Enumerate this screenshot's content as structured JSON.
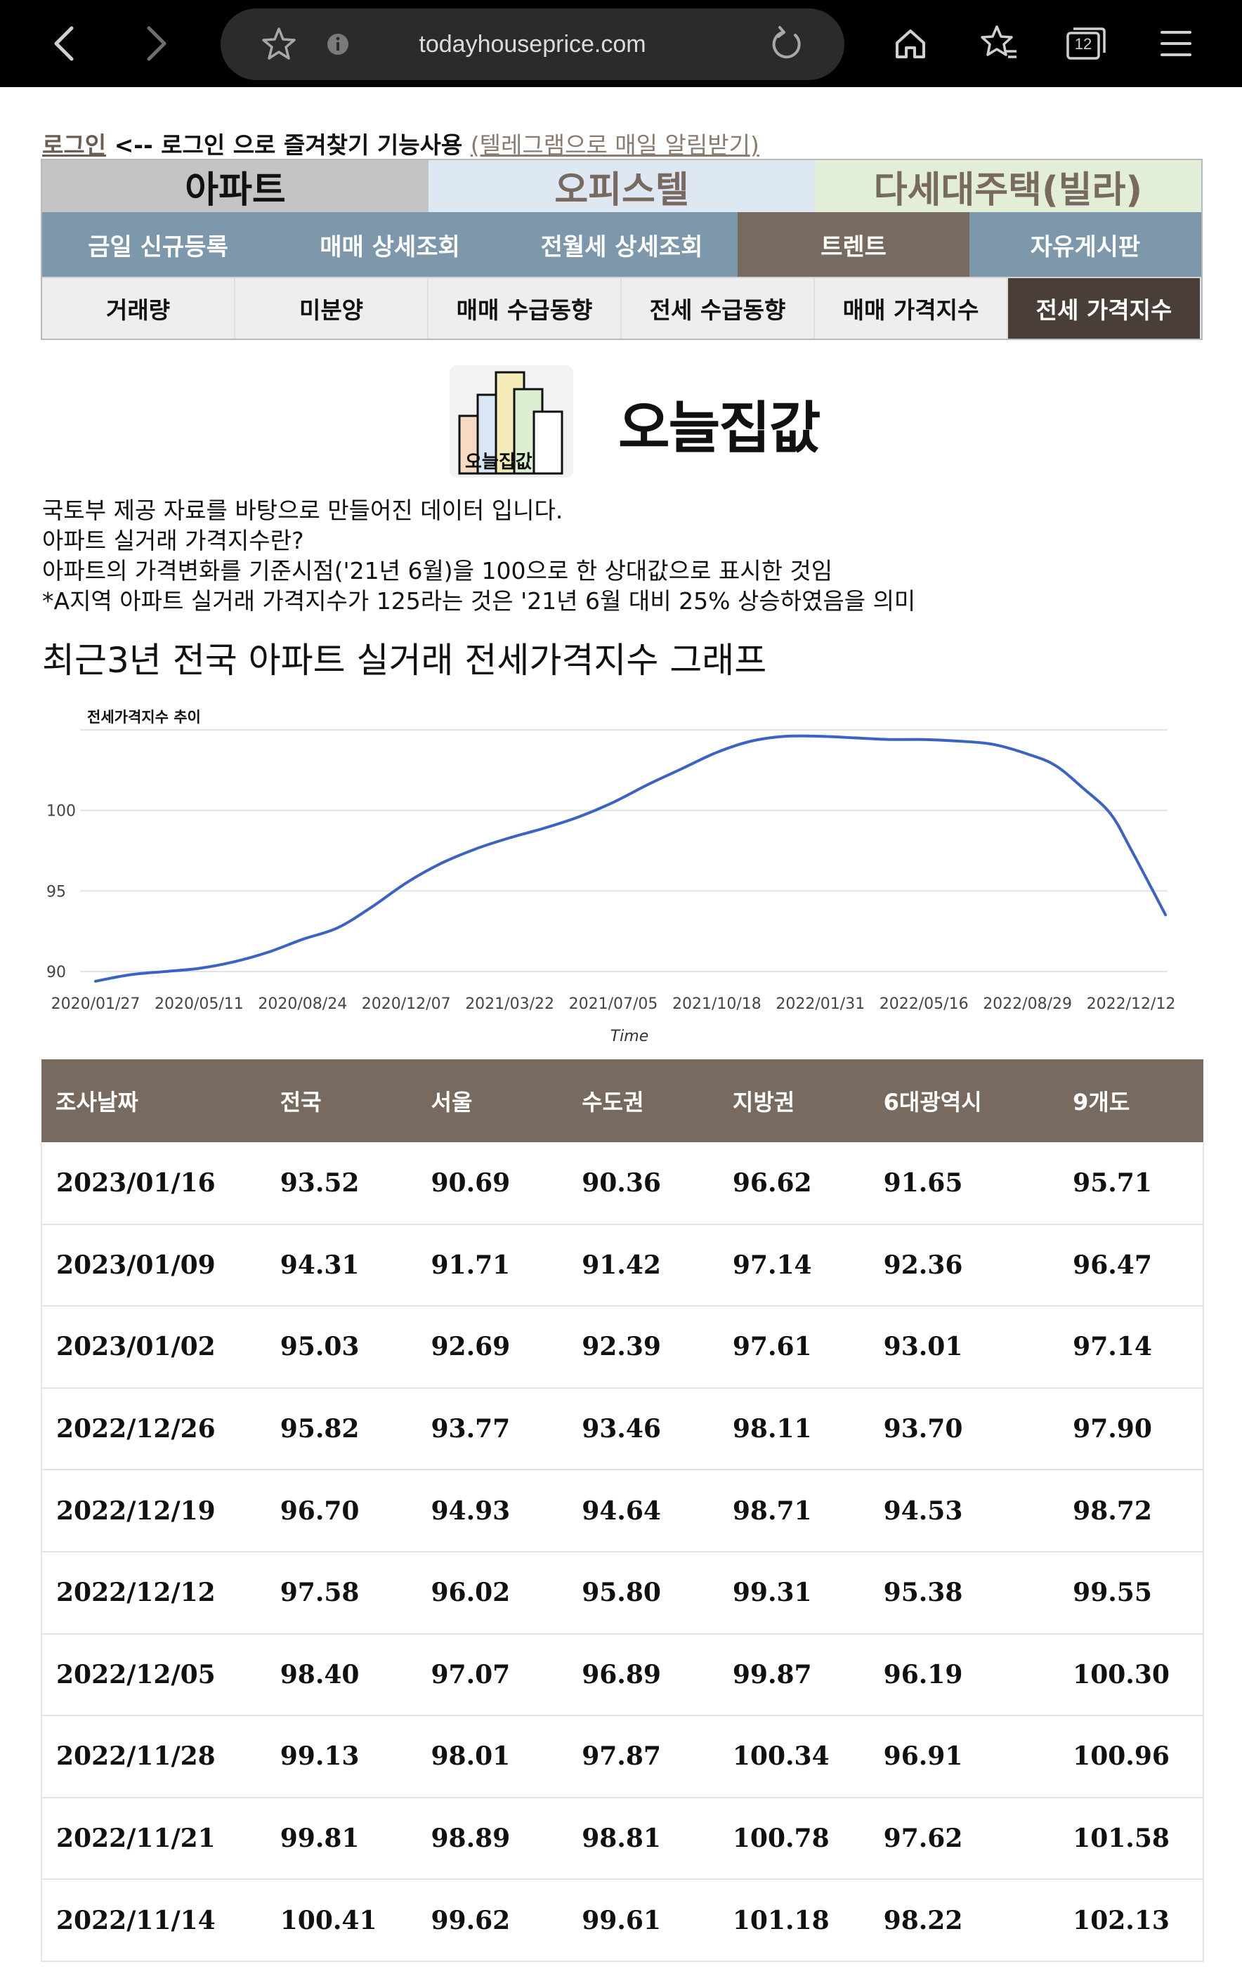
{
  "browser": {
    "url": "todayhouseprice.com",
    "tab_count": "12"
  },
  "login": {
    "login_link": "로그인",
    "text": "<-- 로그인 으로 즐겨찾기 기능사용",
    "telegram_link": "(텔레그램으로 매일 알림받기)"
  },
  "menu": {
    "categories": [
      {
        "label": "아파트",
        "bg": "#c4c4c4",
        "color": "#111111"
      },
      {
        "label": "오피스텔",
        "bg": "#dde8f3",
        "color": "#786a5e"
      },
      {
        "label": "다세대주택(빌라)",
        "bg": "#e3eed9",
        "color": "#786a5e"
      }
    ],
    "sections": [
      "금일 신규등록",
      "매매 상세조회",
      "전월세 상세조회",
      "트렌트",
      "자유게시판"
    ],
    "subsections": [
      "거래량",
      "미분양",
      "매매 수급동향",
      "전세 수급동향",
      "매매 가격지수",
      "전세 가격지수"
    ]
  },
  "logo": {
    "text": "오늘집값",
    "icon_text": "오늘집값"
  },
  "description": [
    "국토부 제공 자료를 바탕으로 만들어진 데이터 입니다.",
    "아파트 실거래 가격지수란?",
    "아파트의 가격변화를 기준시점('21년 6월)을 100으로 한 상대값으로 표시한 것임",
    "*A지역 아파트 실거래 가격지수가 125라는 것은 '21년 6월 대비 25% 상승하였음을 의미"
  ],
  "chart_heading": "최근3년 전국 아파트 실거래 전세가격지수 그래프",
  "chart_data": {
    "type": "line",
    "title": "전세가격지수 추이",
    "xlabel": "Time",
    "ylabel": "",
    "x_ticks": [
      "2020/01/27",
      "2020/05/11",
      "2020/08/24",
      "2020/12/07",
      "2021/03/22",
      "2021/07/05",
      "2021/10/18",
      "2022/01/31",
      "2022/05/16",
      "2022/08/29",
      "2022/12/12"
    ],
    "y_ticks": [
      90,
      95,
      100
    ],
    "ylim": [
      89,
      106
    ],
    "line_color": "#3b63c4",
    "grid": true,
    "series": [
      {
        "x": [
          "2020/01/27",
          "2020/03/02",
          "2020/04/06",
          "2020/05/11",
          "2020/06/15",
          "2020/07/20",
          "2020/08/24",
          "2020/09/28",
          "2020/11/02",
          "2020/12/07",
          "2021/01/11",
          "2021/02/15",
          "2021/03/22",
          "2021/04/26",
          "2021/05/31",
          "2021/07/05",
          "2021/08/09",
          "2021/09/13",
          "2021/10/18",
          "2021/11/22",
          "2021/12/27",
          "2022/01/31",
          "2022/03/07",
          "2022/04/11",
          "2022/05/16",
          "2022/06/20",
          "2022/07/25",
          "2022/08/29",
          "2022/09/26",
          "2022/10/24",
          "2022/11/21",
          "2022/12/12",
          "2023/01/16"
        ],
        "values": [
          89.4,
          89.8,
          90.0,
          90.2,
          90.6,
          91.2,
          92.0,
          92.7,
          94.0,
          95.5,
          96.7,
          97.6,
          98.3,
          98.9,
          99.6,
          100.5,
          101.6,
          102.6,
          103.6,
          104.3,
          104.6,
          104.6,
          104.5,
          104.4,
          104.4,
          104.3,
          104.1,
          103.5,
          102.8,
          101.4,
          99.81,
          97.58,
          93.52
        ]
      }
    ]
  },
  "table": {
    "headers": [
      "조사날짜",
      "전국",
      "서울",
      "수도권",
      "지방권",
      "6대광역시",
      "9개도"
    ],
    "rows": [
      [
        "2023/01/16",
        "93.52",
        "90.69",
        "90.36",
        "96.62",
        "91.65",
        "95.71"
      ],
      [
        "2023/01/09",
        "94.31",
        "91.71",
        "91.42",
        "97.14",
        "92.36",
        "96.47"
      ],
      [
        "2023/01/02",
        "95.03",
        "92.69",
        "92.39",
        "97.61",
        "93.01",
        "97.14"
      ],
      [
        "2022/12/26",
        "95.82",
        "93.77",
        "93.46",
        "98.11",
        "93.70",
        "97.90"
      ],
      [
        "2022/12/19",
        "96.70",
        "94.93",
        "94.64",
        "98.71",
        "94.53",
        "98.72"
      ],
      [
        "2022/12/12",
        "97.58",
        "96.02",
        "95.80",
        "99.31",
        "95.38",
        "99.55"
      ],
      [
        "2022/12/05",
        "98.40",
        "97.07",
        "96.89",
        "99.87",
        "96.19",
        "100.30"
      ],
      [
        "2022/11/28",
        "99.13",
        "98.01",
        "97.87",
        "100.34",
        "96.91",
        "100.96"
      ],
      [
        "2022/11/21",
        "99.81",
        "98.89",
        "98.81",
        "100.78",
        "97.62",
        "101.58"
      ],
      [
        "2022/11/14",
        "100.41",
        "99.62",
        "99.61",
        "101.18",
        "98.22",
        "102.13"
      ]
    ]
  }
}
